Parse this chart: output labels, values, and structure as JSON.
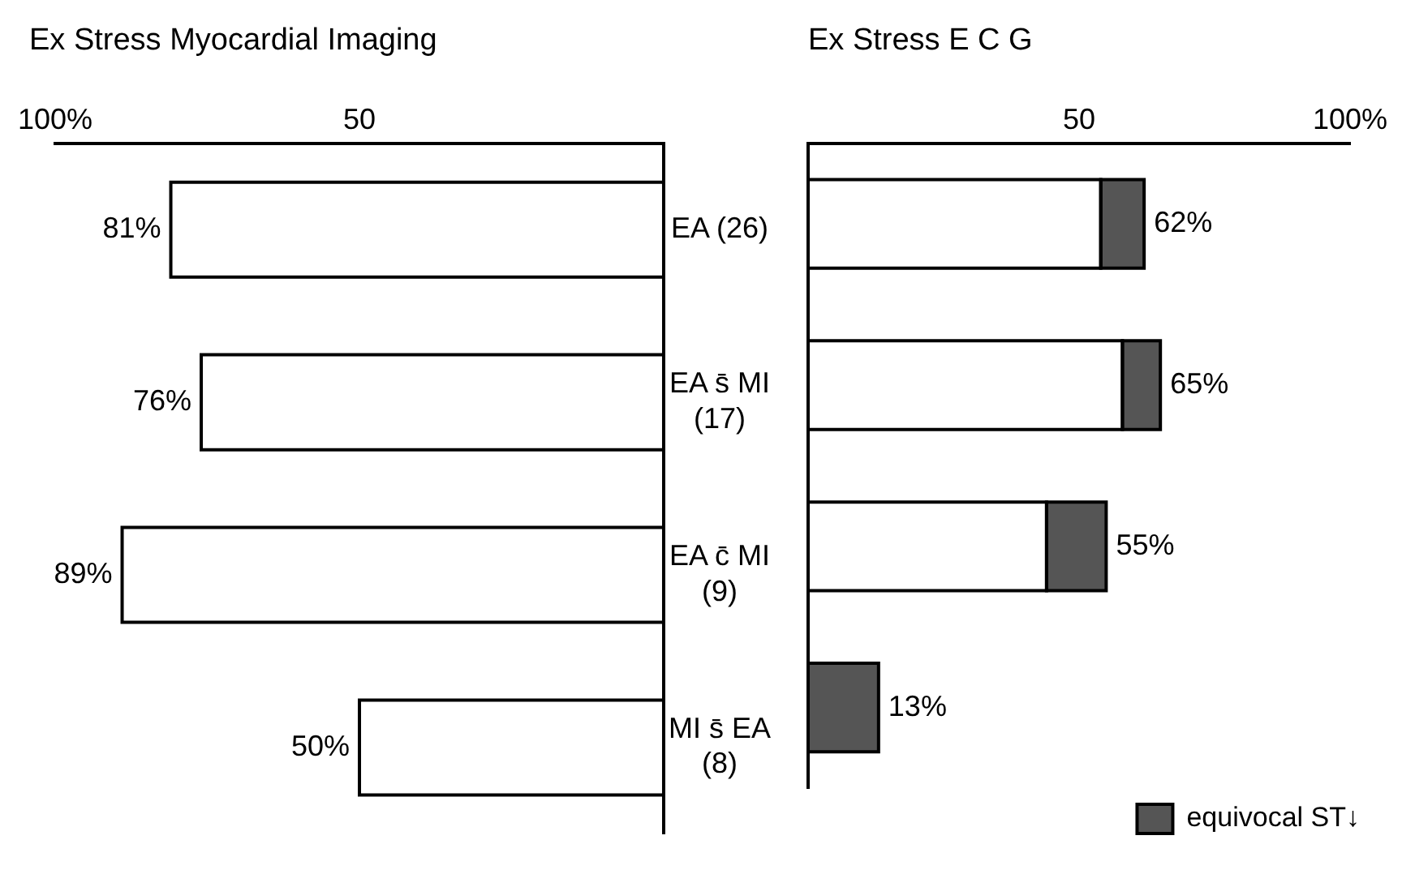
{
  "chart_data": [
    {
      "type": "bar",
      "title": "Ex Stress Myocardial Imaging",
      "orientation": "horizontal",
      "categories": [
        "EA (26)",
        "EA s̄ MI (17)",
        "EA c̄ MI (9)",
        "MI s̄ EA (8)"
      ],
      "values": [
        81,
        76,
        89,
        50
      ],
      "color": "#ffffff",
      "value_labels": [
        "81%",
        "76%",
        "89%",
        "50%"
      ],
      "xlim": [
        100,
        0
      ],
      "xticks": [
        {
          "value": 100,
          "label": "100%"
        },
        50
      ],
      "grid": false,
      "legend": false
    },
    {
      "type": "bar",
      "title": "Ex Stress E C G",
      "orientation": "horizontal",
      "stacked": true,
      "categories": [
        null,
        null,
        null,
        null
      ],
      "series": [
        {
          "color": "#ffffff",
          "values": [
            54,
            58,
            44,
            0
          ]
        },
        {
          "name": "equivocal ST↓",
          "color": "#555555",
          "values": [
            8,
            7,
            11,
            13
          ]
        }
      ],
      "totals": [
        "62%",
        "65%",
        "55%",
        "13%"
      ],
      "xlim": [
        0,
        100
      ],
      "xticks": [
        50,
        {
          "value": 100,
          "label": "100%"
        }
      ],
      "grid": false,
      "legend": "bottom right",
      "tick_labels": "x"
    }
  ]
}
